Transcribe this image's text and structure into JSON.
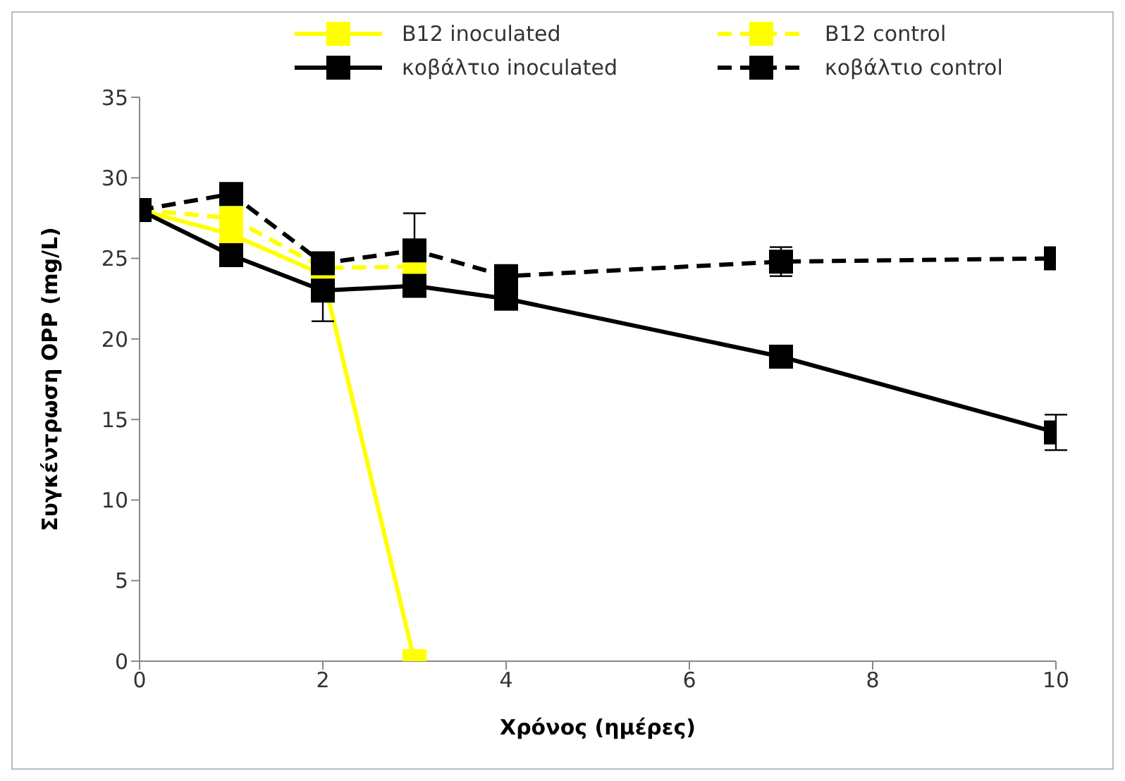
{
  "chart_data": {
    "type": "line",
    "xlabel": "Χρόνος (ημέρες)",
    "ylabel": "Συγκέντρωση OPP (mg/L)",
    "x": [
      0,
      1,
      2,
      3,
      4,
      7,
      10
    ],
    "xlim": [
      0,
      10
    ],
    "xticks": [
      0,
      2,
      4,
      6,
      8,
      10
    ],
    "ylim": [
      0,
      35
    ],
    "yticks": [
      0,
      5,
      10,
      15,
      20,
      25,
      30,
      35
    ],
    "grid": false,
    "legend": "top right",
    "marker": "square",
    "series": [
      {
        "name": "B12 inoculated",
        "color": "#ffff00",
        "line_style": "solid",
        "x": [
          0,
          1,
          2,
          3
        ],
        "values": [
          28,
          26.5,
          24,
          0
        ]
      },
      {
        "name": "B12 control",
        "color": "#ffff00",
        "line_style": "dashed",
        "x": [
          0,
          1,
          2,
          3
        ],
        "values": [
          28,
          27.5,
          24.4,
          24.5
        ]
      },
      {
        "name": "κοβάλτιο inoculated",
        "color": "#000000",
        "line_style": "solid",
        "values": [
          28,
          25.2,
          23,
          23.3,
          22.5,
          18.9,
          14.2
        ],
        "errors": [
          null,
          null,
          1.9,
          null,
          null,
          null,
          1.1
        ]
      },
      {
        "name": "κοβάλτιο control",
        "color": "#000000",
        "line_style": "dashed",
        "values": [
          28,
          29,
          24.7,
          25.5,
          23.9,
          24.8,
          25
        ],
        "errors": [
          null,
          null,
          null,
          2.3,
          null,
          0.9,
          null
        ]
      }
    ]
  }
}
